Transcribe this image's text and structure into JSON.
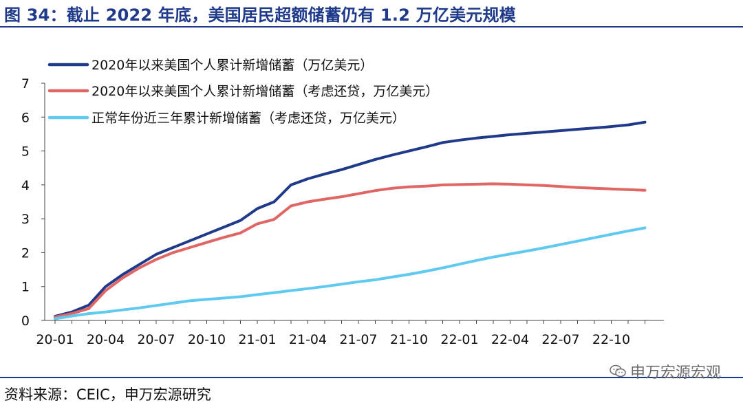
{
  "title": "图 34：截止 2022 年底，美国居民超额储蓄仍有 1.2 万亿美元规模",
  "source": "资料来源：CEIC，申万宏源研究",
  "watermark": "申万宏源宏观",
  "chart_data": {
    "type": "line",
    "ylim": [
      0,
      7
    ],
    "yticks": [
      "0",
      "1",
      "2",
      "3",
      "4",
      "5",
      "6",
      "7"
    ],
    "xticks": [
      "20-01",
      "20-04",
      "20-07",
      "20-10",
      "21-01",
      "21-04",
      "21-07",
      "21-10",
      "22-01",
      "22-04",
      "22-07",
      "22-10"
    ],
    "grid": false,
    "legend_position": "top-left",
    "x": [
      "20-01",
      "20-02",
      "20-03",
      "20-04",
      "20-05",
      "20-06",
      "20-07",
      "20-08",
      "20-09",
      "20-10",
      "20-11",
      "20-12",
      "21-01",
      "21-02",
      "21-03",
      "21-04",
      "21-05",
      "21-06",
      "21-07",
      "21-08",
      "21-09",
      "21-10",
      "21-11",
      "21-12",
      "22-01",
      "22-02",
      "22-03",
      "22-04",
      "22-05",
      "22-06",
      "22-07",
      "22-08",
      "22-09",
      "22-10",
      "22-11",
      "22-12"
    ],
    "series": [
      {
        "name": "2020年以来美国个人累计新增储蓄（万亿美元）",
        "color": "#1f3a8a",
        "values": [
          0.12,
          0.25,
          0.45,
          1.0,
          1.35,
          1.65,
          1.95,
          2.15,
          2.35,
          2.55,
          2.75,
          2.95,
          3.3,
          3.5,
          4.0,
          4.18,
          4.32,
          4.45,
          4.6,
          4.75,
          4.88,
          5.0,
          5.12,
          5.25,
          5.32,
          5.38,
          5.43,
          5.48,
          5.52,
          5.56,
          5.6,
          5.64,
          5.68,
          5.72,
          5.77,
          5.85
        ]
      },
      {
        "name": "2020年以来美国个人累计新增储蓄（考虑还贷，万亿美元）",
        "color": "#e06666",
        "values": [
          0.1,
          0.2,
          0.35,
          0.88,
          1.25,
          1.55,
          1.8,
          2.0,
          2.15,
          2.3,
          2.45,
          2.58,
          2.85,
          2.98,
          3.38,
          3.5,
          3.58,
          3.65,
          3.74,
          3.83,
          3.9,
          3.94,
          3.96,
          4.0,
          4.01,
          4.02,
          4.03,
          4.02,
          4.0,
          3.98,
          3.95,
          3.92,
          3.9,
          3.88,
          3.86,
          3.84
        ]
      },
      {
        "name": "正常年份近三年累计新增储蓄（考虑还贷，万亿美元）",
        "color": "#5fc9f0",
        "values": [
          0.05,
          0.13,
          0.2,
          0.25,
          0.31,
          0.37,
          0.44,
          0.51,
          0.58,
          0.62,
          0.66,
          0.7,
          0.76,
          0.82,
          0.88,
          0.94,
          1.0,
          1.07,
          1.14,
          1.2,
          1.28,
          1.36,
          1.45,
          1.55,
          1.66,
          1.77,
          1.87,
          1.96,
          2.05,
          2.14,
          2.24,
          2.34,
          2.44,
          2.54,
          2.64,
          2.73
        ]
      }
    ]
  }
}
